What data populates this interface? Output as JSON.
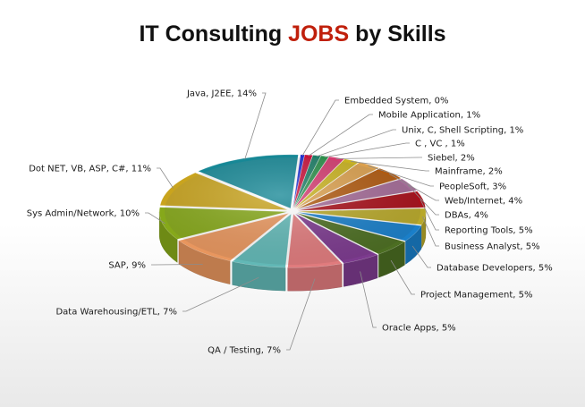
{
  "title": {
    "prefix": "IT Consulting ",
    "accent": "JOBS",
    "suffix": " by Skills"
  },
  "chart_data": {
    "type": "pie",
    "style": "3d-exploded",
    "title": "IT Consulting JOBS by Skills",
    "unit": "%",
    "slices": [
      {
        "label": "Embedded System, 0%",
        "name": "Embedded System",
        "value": 0.5,
        "display": 0,
        "color": "#1f2fd1"
      },
      {
        "label": "Mobile Application, 1%",
        "name": "Mobile Application",
        "value": 1,
        "display": 1,
        "color": "#c8113a"
      },
      {
        "label": "Unix, C, Shell Scripting, 1%",
        "name": "Unix, C, Shell Scripting",
        "value": 1,
        "display": 1,
        "color": "#1c7d66"
      },
      {
        "label": "C  , VC  , 1%",
        "name": "C  , VC",
        "value": 1,
        "display": 1,
        "color": "#2a8f4a"
      },
      {
        "label": "Siebel, 2%",
        "name": "Siebel",
        "value": 2,
        "display": 2,
        "color": "#d33a6f"
      },
      {
        "label": "Mainframe, 2%",
        "name": "Mainframe",
        "value": 2,
        "display": 2,
        "color": "#c9b220"
      },
      {
        "label": "PeopleSoft, 3%",
        "name": "PeopleSoft",
        "value": 3,
        "display": 3,
        "color": "#dba04e"
      },
      {
        "label": "Web/Internet, 4%",
        "name": "Web/Internet",
        "value": 4,
        "display": 4,
        "color": "#b05a10"
      },
      {
        "label": "DBAs, 4%",
        "name": "DBAs",
        "value": 4,
        "display": 4,
        "color": "#a46b97"
      },
      {
        "label": "Reporting Tools, 5%",
        "name": "Reporting Tools",
        "value": 5,
        "display": 5,
        "color": "#a8101a"
      },
      {
        "label": "Business Analyst, 5%",
        "name": "Business Analyst",
        "value": 5,
        "display": 5,
        "color": "#b8a82a"
      },
      {
        "label": "Database Developers, 5%",
        "name": "Database Developers",
        "value": 5,
        "display": 5,
        "color": "#1a7fc9"
      },
      {
        "label": "Project Management, 5%",
        "name": "Project Management",
        "value": 5,
        "display": 5,
        "color": "#4c6e22"
      },
      {
        "label": "Oracle Apps, 5%",
        "name": "Oracle Apps",
        "value": 5,
        "display": 5,
        "color": "#7c3a8e"
      },
      {
        "label": "QA / Testing, 7%",
        "name": "QA / Testing",
        "value": 7,
        "display": 7,
        "color": "#e07b7d"
      },
      {
        "label": "Data Warehousing/ETL, 7%",
        "name": "Data Warehousing/ETL",
        "value": 7,
        "display": 7,
        "color": "#62b8b6"
      },
      {
        "label": "SAP, 9%",
        "name": "SAP",
        "value": 9,
        "display": 9,
        "color": "#e8965e"
      },
      {
        "label": "Sys Admin/Network, 10%",
        "name": "Sys Admin/Network",
        "value": 10,
        "display": 10,
        "color": "#86a81a"
      },
      {
        "label": "Dot NET, VB, ASP, C#, 11%",
        "name": "Dot NET, VB, ASP, C#",
        "value": 11,
        "display": 11,
        "color": "#c9a41e"
      },
      {
        "label": "Java, J2EE, 14%",
        "name": "Java, J2EE",
        "value": 14,
        "display": 14,
        "color": "#178896"
      }
    ],
    "legend": "none",
    "labels": "outside-with-leader-lines"
  }
}
